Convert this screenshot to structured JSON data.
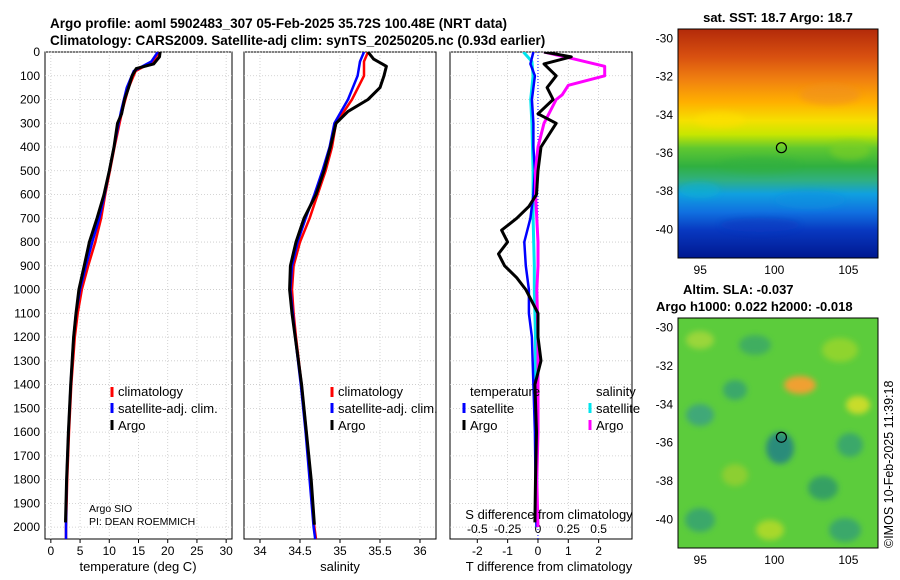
{
  "header": {
    "line1": "Argo profile: aoml 5902483_307 05-Feb-2025 35.72S 100.48E (NRT data)",
    "line2": "Climatology: CARS2009. Satellite-adj clim: synTS_20250205.nc (0.93d earlier)"
  },
  "depth_axis": {
    "ticks": [
      0,
      100,
      200,
      300,
      400,
      500,
      600,
      700,
      800,
      900,
      1000,
      1100,
      1200,
      1300,
      1400,
      1500,
      1600,
      1700,
      1800,
      1900,
      2000
    ],
    "range": [
      0,
      2050
    ]
  },
  "colors": {
    "climatology": "#ff0000",
    "satellite": "#0000ff",
    "argo": "#000000",
    "sat_salinity": "#00e5ee",
    "argo_salinity": "#ff00ff"
  },
  "chart_data": [
    {
      "type": "line",
      "panel": "temperature",
      "xlabel": "temperature (deg C)",
      "xlim": [
        -1,
        31
      ],
      "xticks": [
        0,
        5,
        10,
        15,
        20,
        25,
        30
      ],
      "legend": {
        "items": [
          "climatology",
          "satellite-adj. clim.",
          "Argo"
        ],
        "position": "lower-right"
      },
      "annotation": [
        "Argo SIO",
        "PI: DEAN ROEMMICH"
      ],
      "series": [
        {
          "name": "climatology",
          "depth": [
            0,
            40,
            80,
            150,
            250,
            400,
            500,
            600,
            700,
            800,
            900,
            1000,
            1100,
            1200,
            1400,
            1600,
            1800,
            2000,
            2050
          ],
          "values": [
            18.5,
            17.5,
            14.5,
            13.3,
            12.2,
            10.9,
            10.1,
            9.3,
            8.6,
            7.6,
            6.4,
            5.3,
            4.6,
            4.1,
            3.5,
            3.1,
            2.8,
            2.6,
            2.6
          ]
        },
        {
          "name": "satellite-adj. clim.",
          "depth": [
            0,
            40,
            80,
            150,
            250,
            400,
            500,
            600,
            700,
            800,
            900,
            1000,
            1100,
            1200,
            1400,
            1600,
            1800,
            2000,
            2050
          ],
          "values": [
            18.3,
            17.2,
            14.2,
            13.0,
            12.0,
            10.8,
            10.0,
            9.2,
            8.3,
            7.1,
            6.0,
            5.0,
            4.3,
            3.9,
            3.4,
            3.0,
            2.7,
            2.6,
            2.6
          ]
        },
        {
          "name": "Argo",
          "depth": [
            0,
            20,
            50,
            70,
            100,
            150,
            200,
            260,
            300,
            400,
            500,
            600,
            700,
            800,
            900,
            1000,
            1100,
            1200,
            1400,
            1600,
            1800,
            1980
          ],
          "values": [
            18.7,
            18.6,
            17.6,
            14.6,
            13.9,
            13.3,
            12.6,
            12.1,
            11.4,
            10.8,
            10.0,
            9.1,
            7.9,
            6.6,
            5.7,
            4.8,
            4.3,
            3.9,
            3.4,
            3.0,
            2.7,
            2.5
          ]
        }
      ]
    },
    {
      "type": "line",
      "panel": "salinity",
      "xlabel": "salinity",
      "xlim": [
        33.8,
        36.2
      ],
      "xticks": [
        34,
        34.5,
        35,
        35.5,
        36
      ],
      "legend": {
        "items": [
          "climatology",
          "satellite-adj. clim.",
          "Argo"
        ],
        "position": "lower-right"
      },
      "series": [
        {
          "name": "climatology",
          "depth": [
            0,
            40,
            100,
            200,
            300,
            400,
            500,
            600,
            700,
            800,
            900,
            1000,
            1100,
            1200,
            1400,
            1600,
            1800,
            2000,
            2050
          ],
          "values": [
            35.35,
            35.3,
            35.3,
            35.15,
            34.95,
            34.9,
            34.82,
            34.72,
            34.62,
            34.5,
            34.42,
            34.4,
            34.42,
            34.45,
            34.52,
            34.58,
            34.63,
            34.68,
            34.7
          ]
        },
        {
          "name": "satellite-adj. clim.",
          "depth": [
            0,
            40,
            100,
            200,
            300,
            400,
            500,
            600,
            700,
            800,
            900,
            1000,
            1100,
            1200,
            1400,
            1600,
            1800,
            2000,
            2050
          ],
          "values": [
            35.3,
            35.25,
            35.22,
            35.1,
            34.93,
            34.87,
            34.78,
            34.68,
            34.57,
            34.47,
            34.4,
            34.38,
            34.41,
            34.44,
            34.51,
            34.57,
            34.62,
            34.67,
            34.69
          ]
        },
        {
          "name": "Argo",
          "depth": [
            0,
            30,
            60,
            100,
            150,
            200,
            250,
            300,
            400,
            500,
            600,
            700,
            800,
            900,
            1000,
            1100,
            1200,
            1400,
            1600,
            1800,
            1990
          ],
          "values": [
            35.35,
            35.42,
            35.58,
            35.55,
            35.5,
            35.35,
            35.1,
            34.95,
            34.88,
            34.8,
            34.7,
            34.55,
            34.45,
            34.38,
            34.37,
            34.4,
            34.44,
            34.52,
            34.58,
            34.64,
            34.68
          ]
        }
      ]
    },
    {
      "type": "line",
      "panel": "difference",
      "xlabel": "T difference from climatology",
      "xlabel_top": "S difference from climatology",
      "xlim": [
        -2.9,
        3.1
      ],
      "xticks": [
        -2,
        -1,
        0,
        1,
        2
      ],
      "sticks": [
        -0.5,
        -0.25,
        0,
        0.25,
        0.5
      ],
      "legend": {
        "temperature": [
          "temperature",
          "satellite",
          "Argo"
        ],
        "salinity": [
          "salinity",
          "satellite",
          "Argo"
        ]
      },
      "series": [
        {
          "name": "satellite",
          "depth": [
            0,
            50,
            100,
            200,
            300,
            400,
            500,
            600,
            700,
            800,
            900,
            1000,
            1100,
            1200,
            1400,
            1600,
            1800,
            2000
          ],
          "values": [
            -0.15,
            -0.25,
            -0.1,
            -0.2,
            -0.15,
            -0.15,
            -0.1,
            -0.15,
            -0.25,
            -0.45,
            -0.4,
            -0.3,
            -0.3,
            -0.2,
            -0.15,
            -0.1,
            -0.08,
            -0.05
          ]
        },
        {
          "name": "Argo",
          "depth": [
            0,
            20,
            50,
            100,
            150,
            200,
            260,
            300,
            400,
            500,
            600,
            650,
            700,
            750,
            800,
            850,
            900,
            950,
            1000,
            1050,
            1100,
            1200,
            1300,
            1400,
            1600,
            1800,
            1980
          ],
          "values": [
            0.2,
            1.1,
            0.2,
            0.6,
            0.3,
            0.5,
            0.0,
            0.6,
            0.1,
            0.0,
            -0.05,
            -0.3,
            -0.7,
            -1.2,
            -1.0,
            -1.3,
            -1.1,
            -0.7,
            -0.4,
            -0.2,
            0.0,
            0.0,
            0.1,
            -0.1,
            -0.05,
            -0.08,
            -0.1
          ]
        },
        {
          "name": "salinity satellite",
          "depth": [
            0,
            40,
            100,
            200,
            300,
            500,
            700,
            900,
            1000,
            1200,
            1400,
            1600,
            1800,
            2000
          ],
          "values": [
            -0.12,
            -0.05,
            -0.04,
            -0.06,
            -0.05,
            -0.04,
            -0.04,
            -0.03,
            -0.03,
            -0.02,
            -0.02,
            -0.01,
            -0.01,
            -0.01
          ]
        },
        {
          "name": "salinity Argo",
          "depth": [
            0,
            30,
            60,
            100,
            140,
            180,
            200,
            300,
            400,
            500,
            600,
            700,
            800,
            900,
            1000,
            1200,
            1400,
            1600,
            1800,
            2000
          ],
          "values": [
            0.05,
            0.3,
            0.55,
            0.55,
            0.25,
            0.2,
            0.15,
            0.05,
            0.0,
            -0.02,
            -0.02,
            -0.01,
            0.0,
            0.0,
            -0.01,
            0.0,
            0.0,
            0.0,
            -0.01,
            0.0
          ]
        }
      ]
    },
    {
      "type": "heatmap",
      "panel": "sst_map",
      "title": "sat. SST: 18.7 Argo: 18.7",
      "xlim": [
        93.5,
        107
      ],
      "ylim": [
        -41.5,
        -29.5
      ],
      "xticks": [
        95,
        100,
        105
      ],
      "yticks": [
        -30,
        -32,
        -34,
        -36,
        -38,
        -40
      ],
      "marker": {
        "lon": 100.48,
        "lat": -35.72
      }
    },
    {
      "type": "heatmap",
      "panel": "sla_map",
      "title": "Altim. SLA: -0.037",
      "subtitle": "Argo h1000: 0.022 h2000: -0.018",
      "xlim": [
        93.5,
        107
      ],
      "ylim": [
        -41.5,
        -29.5
      ],
      "xticks": [
        95,
        100,
        105
      ],
      "yticks": [
        -30,
        -32,
        -34,
        -36,
        -38,
        -40
      ],
      "marker": {
        "lon": 100.48,
        "lat": -35.72
      }
    }
  ],
  "credit": "©IMOS 10-Feb-2025 11:39:18"
}
